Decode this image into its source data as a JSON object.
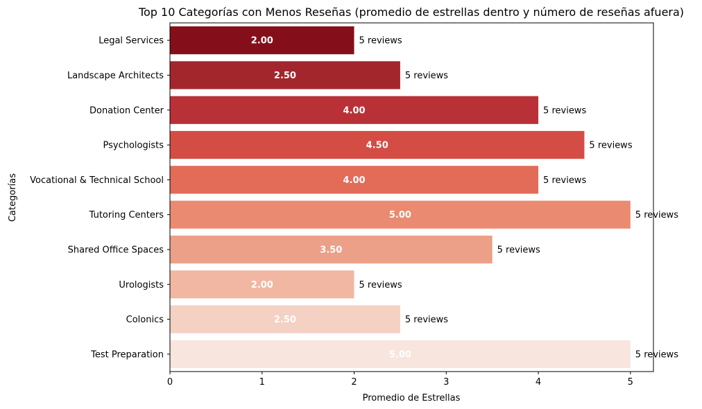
{
  "chart_data": {
    "type": "bar",
    "orientation": "horizontal",
    "title": "Top 10 Categorías con Menos Reseñas (promedio de estrellas dentro y número de reseñas afuera)",
    "xlabel": "Promedio de Estrellas",
    "ylabel": "Categorías",
    "categories": [
      "Legal Services",
      "Landscape Architects",
      "Donation Center",
      "Psychologists",
      "Vocational & Technical School",
      "Tutoring Centers",
      "Shared Office Spaces",
      "Urologists",
      "Colonics",
      "Test Preparation"
    ],
    "values": [
      2.0,
      2.5,
      4.0,
      4.5,
      4.0,
      5.0,
      3.5,
      2.0,
      2.5,
      5.0
    ],
    "value_labels": [
      "2.00",
      "2.50",
      "4.00",
      "4.50",
      "4.00",
      "5.00",
      "3.50",
      "2.00",
      "2.50",
      "5.00"
    ],
    "annotations": [
      "5 reviews",
      "5 reviews",
      "5 reviews",
      "5 reviews",
      "5 reviews",
      "5 reviews",
      "5 reviews",
      "5 reviews",
      "5 reviews",
      "5 reviews"
    ],
    "colors": [
      "#840f1b",
      "#a3262d",
      "#b93136",
      "#d44d44",
      "#e26c58",
      "#ea8a70",
      "#eca087",
      "#f1b7a2",
      "#f4d1c3",
      "#f8e5dd"
    ],
    "xlim": [
      0,
      5.25
    ],
    "xticks": [
      "0",
      "1",
      "2",
      "3",
      "4",
      "5"
    ],
    "grid": false,
    "legend": "none"
  }
}
